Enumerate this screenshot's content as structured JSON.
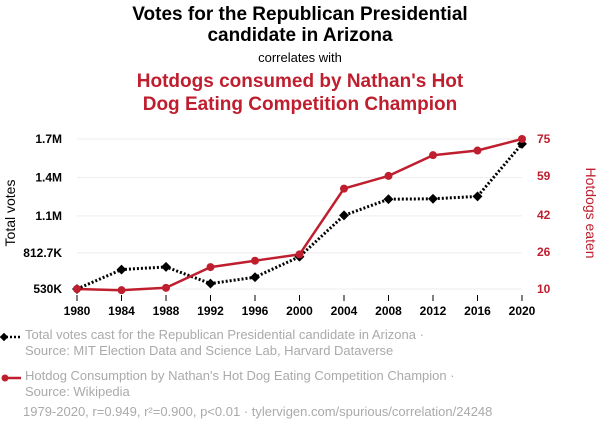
{
  "title_line1": "Votes for the Republican Presidential",
  "title_line2": "candidate in Arizona",
  "correlates_text": "correlates with",
  "subtitle_line1": "Hotdogs consumed by Nathan's Hot",
  "subtitle_line2": "Dog Eating Competition Champion",
  "colors": {
    "series1": "#000000",
    "series2": "#bf1e2e",
    "legend_text": "#aaaaaa"
  },
  "legend": {
    "s1_line1": "Total votes cast for the Republican Presidential candidate in Arizona ·",
    "s1_line2": "Source: MIT Election Data and Science Lab, Harvard Dataverse",
    "s2_line1": "Hotdog Consumption by Nathan's Hot Dog Eating Competition Champion ·",
    "s2_line2": "Source: Wikipedia"
  },
  "footer": "1979-2020, r=0.949, r²=0.900, p<0.01 · tylervigen.com/spurious/correlation/24248",
  "chart_data": {
    "type": "line",
    "x": [
      1980,
      1984,
      1988,
      1992,
      1996,
      2000,
      2004,
      2008,
      2012,
      2016,
      2020
    ],
    "xticks": [
      "1980",
      "1984",
      "1988",
      "1992",
      "1996",
      "2000",
      "2004",
      "2008",
      "2012",
      "2016",
      "2020"
    ],
    "xlim": [
      1980,
      2020
    ],
    "series": [
      {
        "name": "Total votes cast for the Republican Presidential candidate in Arizona",
        "axis": "left",
        "color": "#000000",
        "style": "dotted",
        "marker": "diamond",
        "values": [
          529688,
          681416,
          702541,
          572086,
          622073,
          781652,
          1104294,
          1230111,
          1233654,
          1252401,
          1661686
        ]
      },
      {
        "name": "Hotdog Consumption by Nathan's Hot Dog Eating Competition Champion",
        "axis": "right",
        "color": "#bf1e2e",
        "style": "solid",
        "marker": "circle",
        "values": [
          10,
          9.5,
          10.5,
          19.5,
          22.25,
          25,
          53.5,
          59,
          68,
          70,
          75
        ]
      }
    ],
    "y_left": {
      "label": "Total votes",
      "ylim": [
        530000,
        1700000
      ],
      "ticks": [
        530000,
        812700,
        1100000,
        1400000,
        1700000
      ],
      "tick_labels": [
        "530K",
        "812.7K",
        "1.1M",
        "1.4M",
        "1.7M"
      ]
    },
    "y_right": {
      "label": "Hotdogs eaten",
      "ylim": [
        10,
        75
      ],
      "ticks": [
        10,
        26,
        42,
        59,
        75
      ],
      "tick_labels": [
        "10",
        "26",
        "42",
        "59",
        "75"
      ]
    },
    "grid": true
  }
}
